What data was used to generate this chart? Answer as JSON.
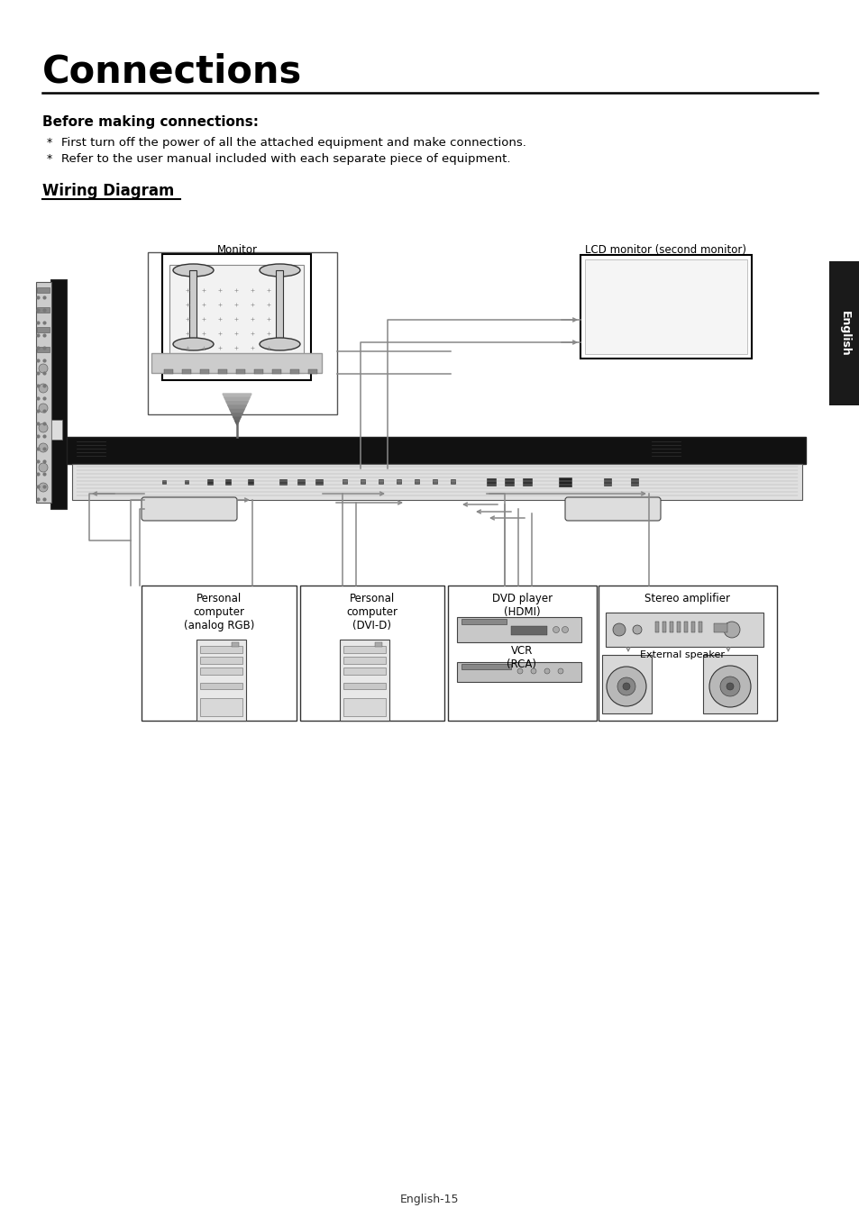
{
  "title": "Connections",
  "title_fontsize": 30,
  "section1_title": "Before making connections:",
  "section1_title_fontsize": 11,
  "bullet1": "First turn off the power of all the attached equipment and make connections.",
  "bullet2": "Refer to the user manual included with each separate piece of equipment.",
  "bullet_fontsize": 9.5,
  "section2_title": "Wiring Diagram",
  "section2_title_fontsize": 12,
  "tab_label": "English",
  "tab_color": "#1a1a1a",
  "tab_text_color": "#ffffff",
  "footer_text": "English-15",
  "bg_color": "#ffffff",
  "text_color": "#000000",
  "cable_color": "#888888",
  "diagram_labels": {
    "monitor": "Monitor",
    "lcd_monitor": "LCD monitor (second monitor)",
    "pc_analog": "Personal\ncomputer\n(analog RGB)",
    "pc_dvi": "Personal\ncomputer\n(DVI-D)",
    "dvd": "DVD player\n(HDMI)",
    "vcr": "VCR\n(RCA)",
    "stereo": "Stereo amplifier",
    "speaker": "External speaker"
  }
}
